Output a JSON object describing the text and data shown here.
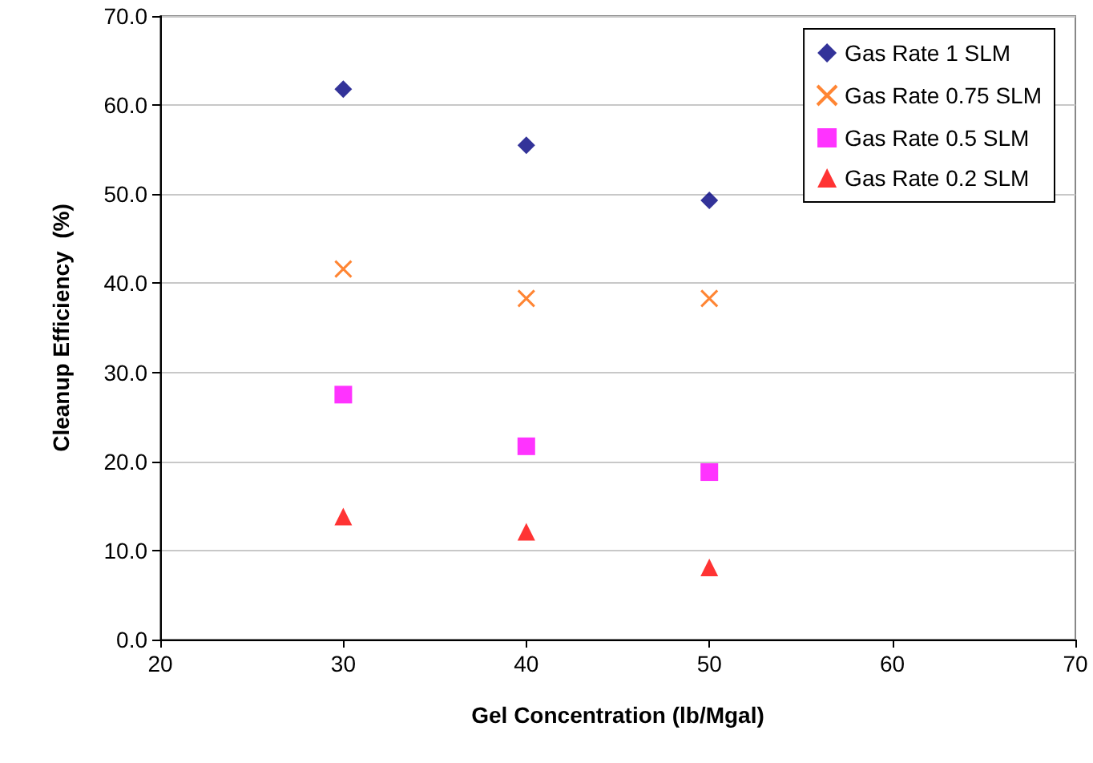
{
  "chart_data": {
    "type": "scatter",
    "xlabel": "Gel Concentration (lb/Mgal)",
    "ylabel": "Cleanup Efficiency  (%)",
    "x": [
      30,
      40,
      50
    ],
    "series": [
      {
        "name": "Gas Rate 1 SLM",
        "color": "#000080",
        "marker": "diamond",
        "values": [
          61.8,
          55.5,
          49.3
        ]
      },
      {
        "name": "Gas Rate 0.75 SLM",
        "color": "#ff6600",
        "marker": "cross",
        "values": [
          41.6,
          38.3,
          38.3
        ]
      },
      {
        "name": "Gas Rate 0.5 SLM",
        "color": "#ff00ff",
        "marker": "square",
        "values": [
          27.5,
          21.7,
          18.8
        ]
      },
      {
        "name": "Gas Rate 0.2 SLM",
        "color": "#ff0000",
        "marker": "triangle",
        "values": [
          13.8,
          12.1,
          8.1
        ]
      }
    ],
    "xlim": [
      20,
      70
    ],
    "xticks": [
      20,
      30,
      40,
      50,
      60,
      70
    ],
    "ylim": [
      0,
      70
    ],
    "yticks": [
      {
        "value": 0,
        "label": "0.0"
      },
      {
        "value": 10,
        "label": "10.0"
      },
      {
        "value": 20,
        "label": "20.0"
      },
      {
        "value": 30,
        "label": "30.0"
      },
      {
        "value": 40,
        "label": "40.0"
      },
      {
        "value": 50,
        "label": "50.0"
      },
      {
        "value": 60,
        "label": "60.0"
      },
      {
        "value": 70,
        "label": "70.0"
      }
    ],
    "grid": "y",
    "legend": "top right"
  }
}
